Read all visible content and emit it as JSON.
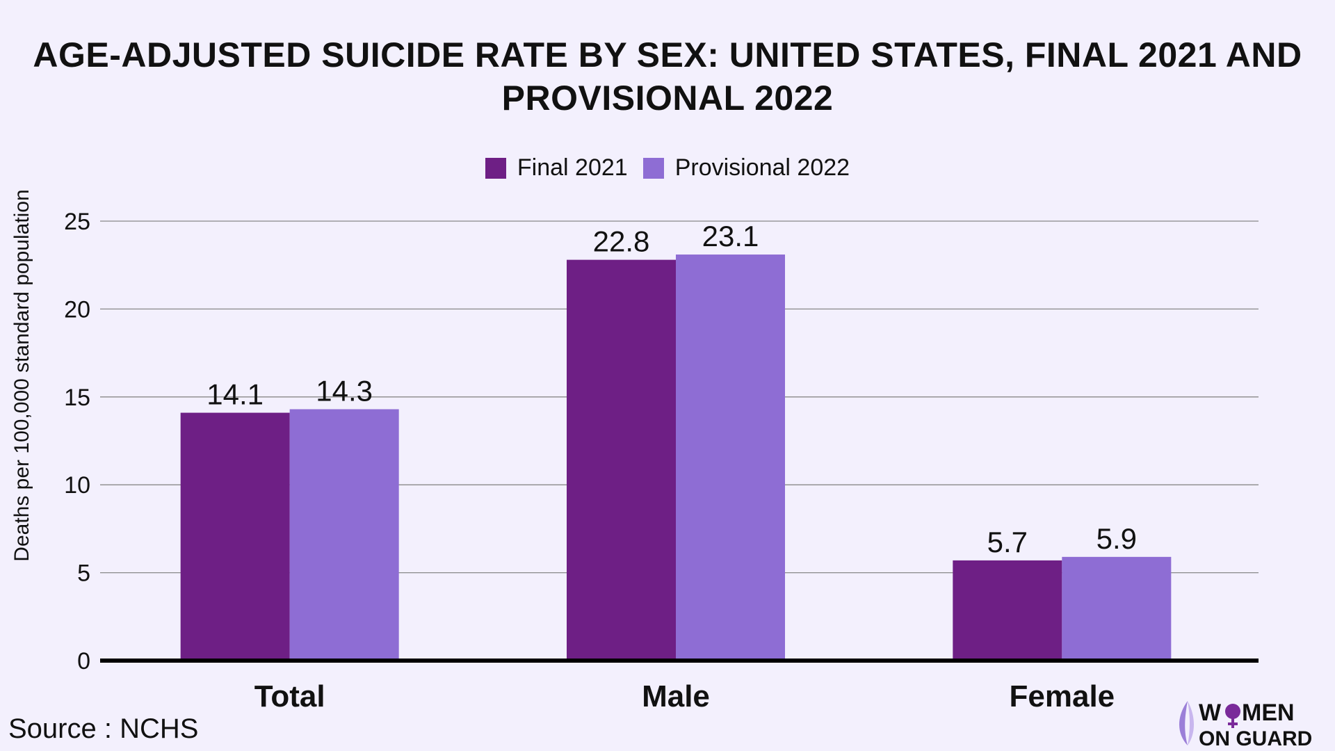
{
  "chart_data": {
    "type": "bar",
    "title": "AGE-ADJUSTED SUICIDE RATE BY SEX: UNITED STATES, FINAL 2021 AND PROVISIONAL 2022",
    "categories": [
      "Total",
      "Male",
      "Female"
    ],
    "series": [
      {
        "name": "Final 2021",
        "color": "#6e1f85",
        "values": [
          14.1,
          22.8,
          5.7
        ]
      },
      {
        "name": "Provisional 2022",
        "color": "#8e6dd4",
        "values": [
          14.3,
          23.1,
          5.9
        ]
      }
    ],
    "xlabel": "",
    "ylabel": "Deaths per 100,000 standard population",
    "ylim": [
      0,
      25
    ],
    "yticks": [
      0,
      5,
      10,
      15,
      20,
      25
    ],
    "grid": true,
    "legend": "top-center"
  },
  "source": "Source : NCHS",
  "logo": {
    "text": "WOMEN ON GUARD",
    "color": "#7a2a9a"
  }
}
